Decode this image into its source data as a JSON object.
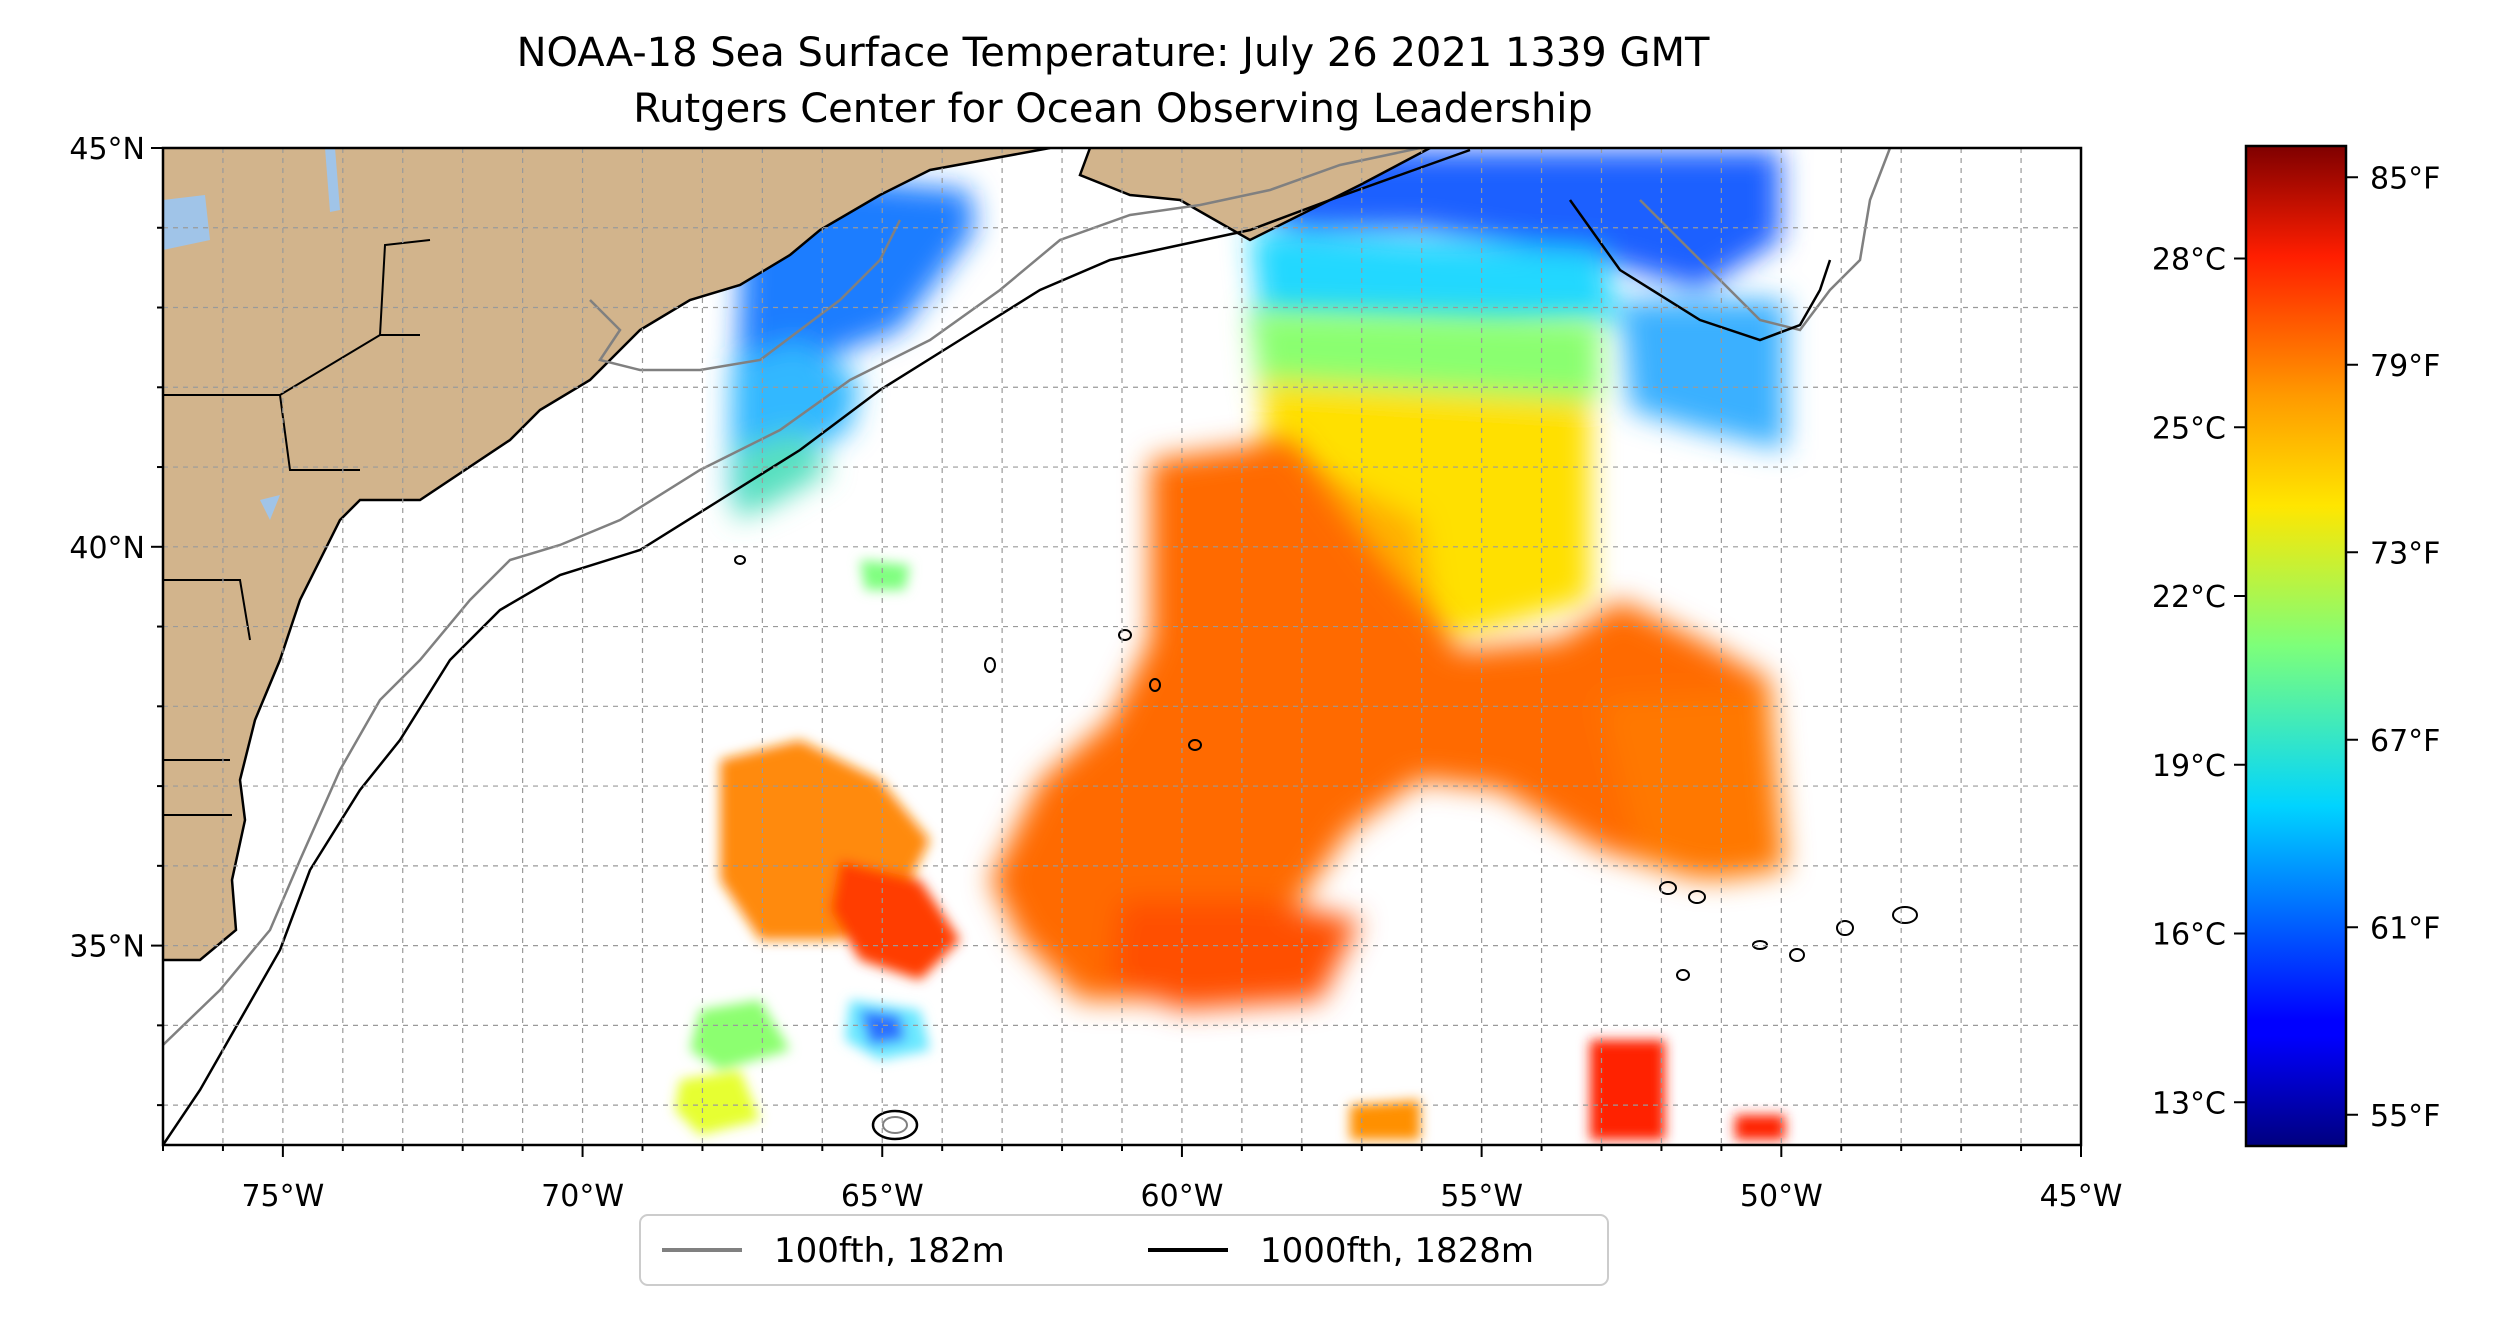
{
  "title": {
    "line1": "NOAA-18 Sea Surface Temperature: July 26 2021 1339 GMT",
    "line2": "Rutgers Center for Ocean Observing Leadership"
  },
  "map": {
    "lon_range": [
      -77,
      -45
    ],
    "lat_range": [
      32.5,
      45
    ],
    "x_ticks": [
      {
        "lon": -75,
        "label": "75°W"
      },
      {
        "lon": -70,
        "label": "70°W"
      },
      {
        "lon": -65,
        "label": "65°W"
      },
      {
        "lon": -60,
        "label": "60°W"
      },
      {
        "lon": -55,
        "label": "55°W"
      },
      {
        "lon": -50,
        "label": "50°W"
      },
      {
        "lon": -45,
        "label": "45°W"
      }
    ],
    "y_ticks": [
      {
        "lat": 45,
        "label": "45°N"
      },
      {
        "lat": 40,
        "label": "40°N"
      },
      {
        "lat": 35,
        "label": "35°N"
      }
    ],
    "grid": true,
    "colors": {
      "land": "#d2b48c",
      "lakes": "#a0c4e8",
      "ocean_nodata": "#ffffff",
      "contour_100fth": "#808080",
      "contour_1000fth": "#000000"
    }
  },
  "legend": {
    "placement": "bottom-center",
    "entries": [
      {
        "label": "100fth, 182m",
        "color": "#808080"
      },
      {
        "label": "1000fth, 1828m",
        "color": "#000000"
      }
    ]
  },
  "colorbar": {
    "colormap": "jet",
    "range_f": [
      54,
      86
    ],
    "celsius_ticks": [
      {
        "value": 13,
        "label": "13°C"
      },
      {
        "value": 16,
        "label": "16°C"
      },
      {
        "value": 19,
        "label": "19°C"
      },
      {
        "value": 22,
        "label": "22°C"
      },
      {
        "value": 25,
        "label": "25°C"
      },
      {
        "value": 28,
        "label": "28°C"
      }
    ],
    "fahrenheit_ticks": [
      {
        "value": 55,
        "label": "55°F"
      },
      {
        "value": 61,
        "label": "61°F"
      },
      {
        "value": 67,
        "label": "67°F"
      },
      {
        "value": 73,
        "label": "73°F"
      },
      {
        "value": 79,
        "label": "79°F"
      },
      {
        "value": 85,
        "label": "85°F"
      }
    ]
  }
}
